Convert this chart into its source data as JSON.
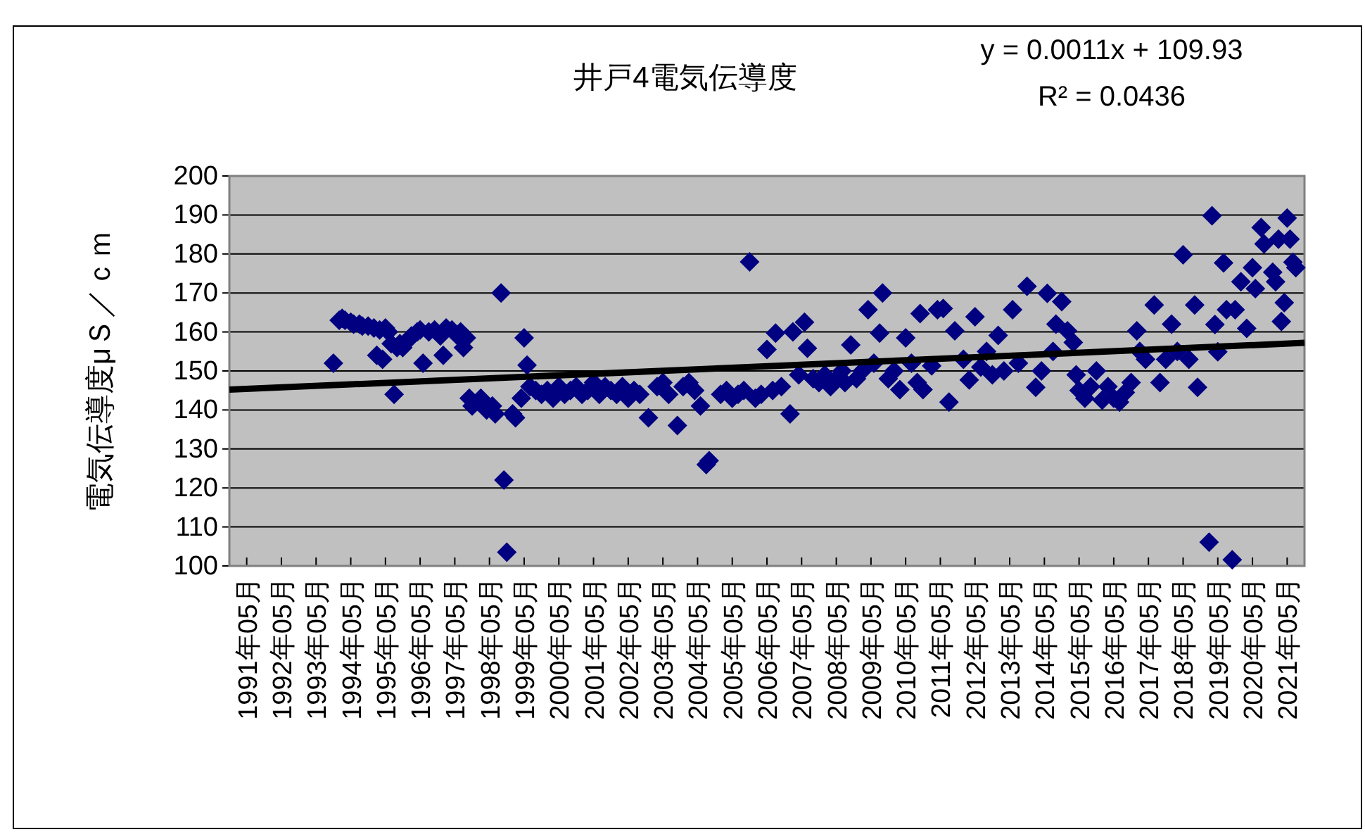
{
  "chart_data": {
    "type": "scatter",
    "title": "井戸4電気伝導度",
    "ylabel": "電気伝導度μＳ／ｃｍ",
    "annotations": [
      "y = 0.0011x + 109.93",
      "R² = 0.0436"
    ],
    "series": [
      {
        "color": "#000080",
        "marker": "diamond",
        "x": [
          "1993-11",
          "1994-01",
          "1994-02",
          "1994-03",
          "1994-05",
          "1994-06",
          "1994-08",
          "1994-09",
          "1994-11",
          "1995-01",
          "1995-02",
          "1995-03",
          "1995-04",
          "1995-05",
          "1995-06",
          "1995-07",
          "1995-08",
          "1995-09",
          "1995-10",
          "1995-11",
          "1996-01",
          "1996-02",
          "1996-04",
          "1996-05",
          "1996-06",
          "1996-08",
          "1996-10",
          "1996-12",
          "1997-01",
          "1997-02",
          "1997-04",
          "1997-06",
          "1997-07",
          "1997-08",
          "1997-09",
          "1997-10",
          "1997-11",
          "1998-02",
          "1998-04",
          "1998-06",
          "1998-07",
          "1998-09",
          "1998-10",
          "1998-11",
          "1999-01",
          "1999-02",
          "1999-04",
          "1999-05",
          "1999-06",
          "1999-07",
          "1999-09",
          "1999-11",
          "2000-01",
          "2000-03",
          "2000-05",
          "2000-07",
          "2000-09",
          "2000-11",
          "2001-01",
          "2001-03",
          "2001-05",
          "2001-07",
          "2001-09",
          "2001-11",
          "2002-01",
          "2002-03",
          "2002-05",
          "2002-07",
          "2002-09",
          "2002-12",
          "2003-03",
          "2003-05",
          "2003-07",
          "2003-10",
          "2003-12",
          "2004-02",
          "2004-04",
          "2004-06",
          "2004-08",
          "2004-09",
          "2005-01",
          "2005-03",
          "2005-05",
          "2005-07",
          "2005-09",
          "2005-11",
          "2006-01",
          "2006-03",
          "2006-05",
          "2006-07",
          "2006-08",
          "2006-10",
          "2007-01",
          "2007-02",
          "2007-04",
          "2007-06",
          "2007-07",
          "2007-09",
          "2007-11",
          "2008-01",
          "2008-03",
          "2008-05",
          "2008-07",
          "2008-08",
          "2008-10",
          "2008-12",
          "2009-02",
          "2009-04",
          "2009-06",
          "2009-08",
          "2009-09",
          "2009-11",
          "2010-01",
          "2010-03",
          "2010-05",
          "2010-07",
          "2010-09",
          "2010-10",
          "2010-11",
          "2011-02",
          "2011-04",
          "2011-06",
          "2011-08",
          "2011-10",
          "2012-01",
          "2012-03",
          "2012-05",
          "2012-07",
          "2012-09",
          "2012-11",
          "2013-01",
          "2013-03",
          "2013-06",
          "2013-08",
          "2013-11",
          "2014-02",
          "2014-04",
          "2014-06",
          "2014-08",
          "2014-09",
          "2014-11",
          "2015-01",
          "2015-03",
          "2015-04",
          "2015-05",
          "2015-07",
          "2015-09",
          "2015-11",
          "2016-01",
          "2016-03",
          "2016-05",
          "2016-07",
          "2016-09",
          "2016-11",
          "2017-01",
          "2017-02",
          "2017-04",
          "2017-07",
          "2017-09",
          "2017-11",
          "2018-01",
          "2018-03",
          "2018-05",
          "2018-07",
          "2018-09",
          "2018-10",
          "2019-02",
          "2019-03",
          "2019-04",
          "2019-05",
          "2019-07",
          "2019-08",
          "2019-10",
          "2019-11",
          "2020-01",
          "2020-03",
          "2020-05",
          "2020-06",
          "2020-08",
          "2020-09",
          "2020-12",
          "2021-01",
          "2021-02",
          "2021-03",
          "2021-04",
          "2021-05",
          "2021-06",
          "2021-07",
          "2021-08"
        ],
        "values": [
          152,
          163,
          163.5,
          163,
          162.5,
          162,
          162,
          161.5,
          161.5,
          161,
          154,
          160.5,
          153,
          161,
          160,
          157,
          144,
          156,
          157,
          156,
          158,
          159,
          160,
          160.5,
          152,
          160,
          160.5,
          159,
          154,
          161,
          160.5,
          159,
          160,
          156,
          158.5,
          143,
          141,
          143,
          140,
          141,
          139,
          170,
          122,
          103.5,
          139,
          138,
          143,
          158.5,
          151.5,
          146,
          145,
          144,
          145,
          143,
          146,
          144,
          145,
          146,
          144,
          145,
          147,
          144,
          146,
          145,
          144,
          146,
          143,
          145,
          144,
          138,
          146,
          147,
          144,
          136,
          146,
          147,
          145,
          141,
          126,
          127,
          144,
          145,
          143,
          144,
          145,
          178,
          143,
          144,
          155.5,
          145,
          159.7,
          146,
          139,
          160,
          149,
          162.5,
          155.8,
          148,
          147,
          149,
          146,
          148,
          150,
          147,
          156.7,
          148,
          150,
          165.7,
          152,
          159.7,
          170,
          148,
          150,
          145.2,
          158.5,
          152,
          147,
          164.7,
          145.2,
          151.3,
          165.7,
          166,
          142,
          160.3,
          153,
          147.7,
          163.9,
          151,
          155,
          149,
          159.1,
          150,
          165.7,
          152,
          171.7,
          145.8,
          150,
          169.9,
          155,
          162,
          167.8,
          160.3,
          157.3,
          149,
          145,
          143,
          146,
          150,
          142.5,
          146,
          143,
          142,
          144.5,
          147,
          160.3,
          155,
          153,
          166.9,
          147,
          153,
          162,
          155,
          179.8,
          153,
          166.9,
          145.8,
          106.1,
          189.8,
          161.9,
          154.9,
          177.7,
          165.7,
          101.6,
          165.7,
          172.9,
          160.9,
          176.5,
          171.1,
          186.8,
          182.6,
          175.3,
          172.9,
          183.8,
          162.7,
          167.5,
          189.2,
          183.8,
          177.9,
          176.5
        ]
      },
      {
        "type": "line",
        "color": "#000000",
        "marker": "none",
        "x": [
          "1990-11",
          "2021-11"
        ],
        "values": [
          145.2,
          157.2
        ]
      }
    ],
    "grid": "y",
    "xlim": [
      "1990-11",
      "2021-11"
    ],
    "xticks": [
      {
        "value": "1991-05",
        "label": "1991年05月"
      },
      {
        "value": "1992-05",
        "label": "1992年05月"
      },
      {
        "value": "1993-05",
        "label": "1993年05月"
      },
      {
        "value": "1994-05",
        "label": "1994年05月"
      },
      {
        "value": "1995-05",
        "label": "1995年05月"
      },
      {
        "value": "1996-05",
        "label": "1996年05月"
      },
      {
        "value": "1997-05",
        "label": "1997年05月"
      },
      {
        "value": "1998-05",
        "label": "1998年05月"
      },
      {
        "value": "1999-05",
        "label": "1999年05月"
      },
      {
        "value": "2000-05",
        "label": "2000年05月"
      },
      {
        "value": "2001-05",
        "label": "2001年05月"
      },
      {
        "value": "2002-05",
        "label": "2002年05月"
      },
      {
        "value": "2003-05",
        "label": "2003年05月"
      },
      {
        "value": "2004-05",
        "label": "2004年05月"
      },
      {
        "value": "2005-05",
        "label": "2005年05月"
      },
      {
        "value": "2006-05",
        "label": "2006年05月"
      },
      {
        "value": "2007-05",
        "label": "2007年05月"
      },
      {
        "value": "2008-05",
        "label": "2008年05月"
      },
      {
        "value": "2009-05",
        "label": "2009年05月"
      },
      {
        "value": "2010-05",
        "label": "2010年05月"
      },
      {
        "value": "2011-05",
        "label": "2011年05月"
      },
      {
        "value": "2012-05",
        "label": "2012年05月"
      },
      {
        "value": "2013-05",
        "label": "2013年05月"
      },
      {
        "value": "2014-05",
        "label": "2014年05月"
      },
      {
        "value": "2015-05",
        "label": "2015年05月"
      },
      {
        "value": "2016-05",
        "label": "2016年05月"
      },
      {
        "value": "2017-05",
        "label": "2017年05月"
      },
      {
        "value": "2018-05",
        "label": "2018年05月"
      },
      {
        "value": "2019-05",
        "label": "2019年05月"
      },
      {
        "value": "2020-05",
        "label": "2020年05月"
      },
      {
        "value": "2021-05",
        "label": "2021年05月"
      }
    ],
    "ylim": [
      100,
      200
    ],
    "yticks": [
      100,
      110,
      120,
      130,
      140,
      150,
      160,
      170,
      180,
      190,
      200
    ]
  }
}
